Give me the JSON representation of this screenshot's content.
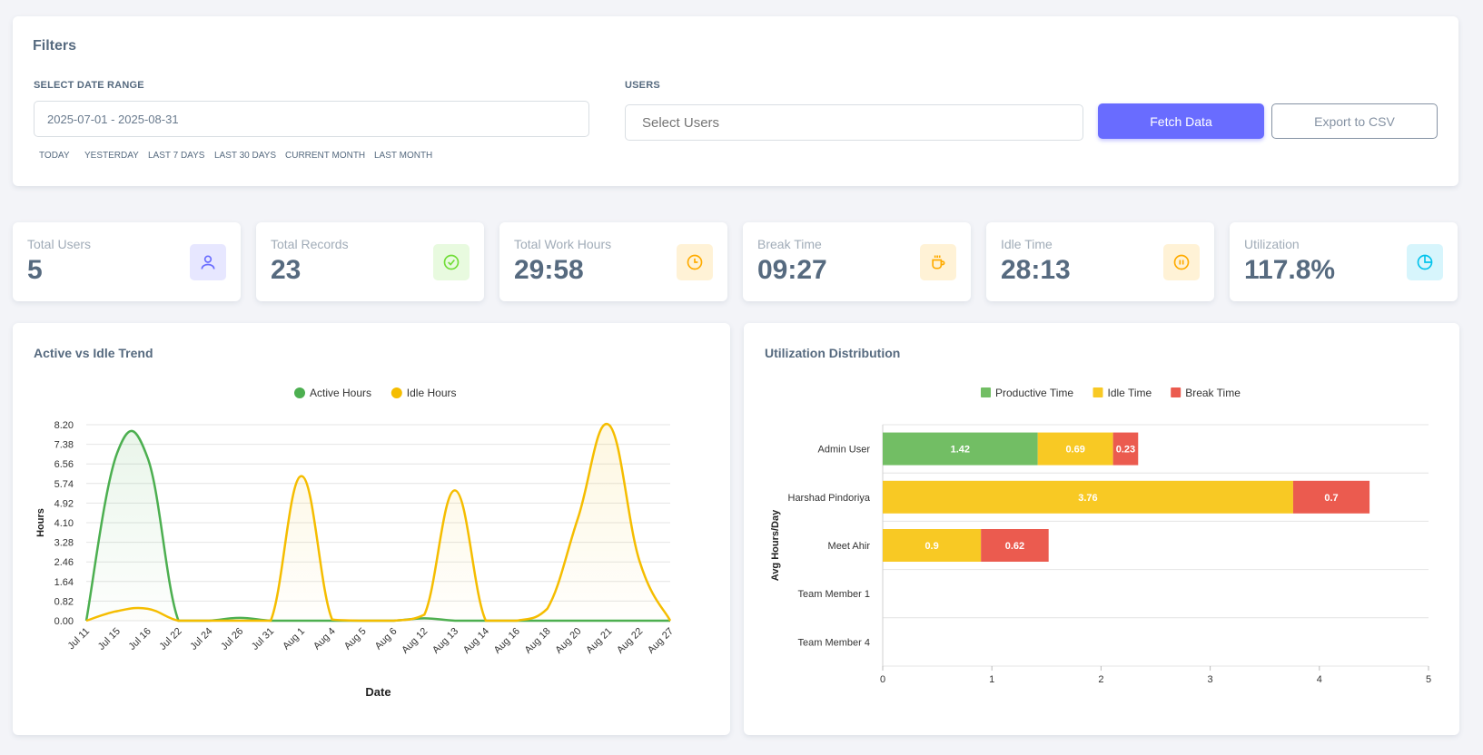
{
  "filters": {
    "title": "Filters",
    "date_range_label": "SELECT DATE RANGE",
    "date_range_value": "2025-07-01 - 2025-08-31",
    "users_label": "USERS",
    "users_placeholder": "Select Users",
    "presets": [
      "TODAY",
      "YESTERDAY",
      "LAST 7 DAYS",
      "LAST 30 DAYS",
      "CURRENT MONTH",
      "LAST MONTH"
    ],
    "fetch_label": "Fetch Data",
    "export_label": "Export to CSV"
  },
  "stats": [
    {
      "label": "Total Users",
      "value": "5",
      "icon": "user-icon",
      "color": "#696cff",
      "bg": "#e7e7ff"
    },
    {
      "label": "Total Records",
      "value": "23",
      "icon": "check-circle-icon",
      "color": "#71dd37",
      "bg": "#e8fadf"
    },
    {
      "label": "Total Work Hours",
      "value": "29:58",
      "icon": "clock-icon",
      "color": "#ffab00",
      "bg": "#fff2d6"
    },
    {
      "label": "Break Time",
      "value": "09:27",
      "icon": "coffee-icon",
      "color": "#ffab00",
      "bg": "#fff2d6"
    },
    {
      "label": "Idle Time",
      "value": "28:13",
      "icon": "pause-circle-icon",
      "color": "#ffab00",
      "bg": "#fff2d6"
    },
    {
      "label": "Utilization",
      "value": "117.8%",
      "icon": "pie-chart-icon",
      "color": "#03c3ec",
      "bg": "#d7f5fc"
    }
  ],
  "chart_data": [
    {
      "type": "line",
      "title": "Active vs Idle Trend",
      "xlabel": "Date",
      "ylabel": "Hours",
      "ylim": [
        0,
        8.2
      ],
      "yticks": [
        "0.00",
        "0.82",
        "1.64",
        "2.46",
        "3.28",
        "4.10",
        "4.92",
        "5.74",
        "6.56",
        "7.38",
        "8.20"
      ],
      "legend": "top",
      "categories": [
        "Jul 11",
        "Jul 15",
        "Jul 16",
        "Jul 22",
        "Jul 24",
        "Jul 26",
        "Jul 31",
        "Aug 1",
        "Aug 4",
        "Aug 5",
        "Aug 6",
        "Aug 12",
        "Aug 13",
        "Aug 14",
        "Aug 16",
        "Aug 18",
        "Aug 20",
        "Aug 21",
        "Aug 22",
        "Aug 27"
      ],
      "series": [
        {
          "name": "Active Hours",
          "color": "#4caf50",
          "values": [
            0,
            7.0,
            6.8,
            0,
            0,
            0.12,
            0,
            0,
            0,
            0,
            0,
            0.1,
            0,
            0,
            0,
            0,
            0,
            0,
            0,
            0
          ]
        },
        {
          "name": "Idle Hours",
          "color": "#f5bd00",
          "values": [
            0,
            0.4,
            0.5,
            0,
            0,
            0,
            0,
            6.05,
            0.05,
            0,
            0,
            0.25,
            5.45,
            0,
            0,
            0.5,
            4.3,
            8.2,
            2.5,
            0
          ]
        }
      ]
    },
    {
      "type": "bar",
      "orientation": "horizontal",
      "stacked": true,
      "title": "Utilization Distribution",
      "ylabel": "Avg Hours/Day",
      "xlim": [
        0,
        5
      ],
      "xticks": [
        "0",
        "1",
        "2",
        "3",
        "4",
        "5"
      ],
      "legend": "top",
      "categories": [
        "Admin User",
        "Harshad Pindoriya",
        "Meet Ahir",
        "Team Member 1",
        "Team Member 4"
      ],
      "series": [
        {
          "name": "Productive Time",
          "color": "#72be64",
          "values": [
            1.42,
            0,
            0,
            0,
            0
          ],
          "labels": [
            "1.42",
            "",
            "",
            "",
            ""
          ]
        },
        {
          "name": "Idle Time",
          "color": "#f8c924",
          "values": [
            0.69,
            3.76,
            0.9,
            0,
            0
          ],
          "labels": [
            "0.69",
            "3.76",
            "0.9",
            "",
            ""
          ]
        },
        {
          "name": "Break Time",
          "color": "#eb5b4f",
          "values": [
            0.23,
            0.7,
            0.62,
            0,
            0
          ],
          "labels": [
            "0.23",
            "0.7",
            "0.62",
            "",
            ""
          ]
        }
      ]
    }
  ]
}
